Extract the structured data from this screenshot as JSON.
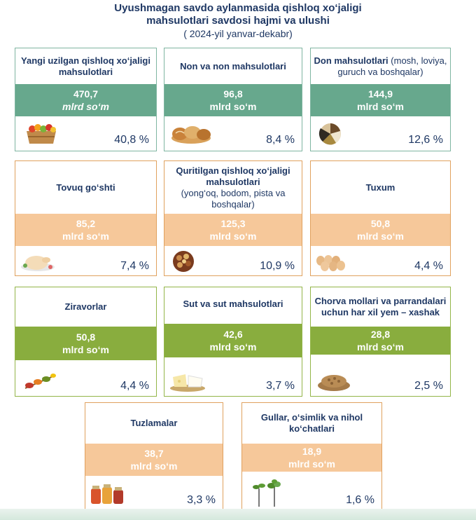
{
  "header": {
    "title_line1": "Uyushmagan savdo aylanmasida  qishloq xo‘jaligi",
    "title_line2": "mahsulotlari savdosi  hajmi va ulushi",
    "subtitle": "( 2024-yil yanvar-dekabr)"
  },
  "cards": [
    {
      "title": "Yangi uzilgan qishloq xo‘jaligi mahsulotlari",
      "title_extra": "",
      "value": "470,7",
      "unit": "mlrd so‘m",
      "percent": "40,8 %",
      "icon": "fruit-crate-icon",
      "color": "#67a88d"
    },
    {
      "title": "Non va non mahsulotlari",
      "title_extra": "",
      "value": "96,8",
      "unit": "mlrd so‘m",
      "percent": "8,4 %",
      "icon": "bread-icon",
      "color": "#67a88d"
    },
    {
      "title": "Don mahsulotlari",
      "title_extra": "(mosh, loviya, guruch va boshqalar)",
      "value": "144,9",
      "unit": "mlrd so‘m",
      "percent": "12,6 %",
      "icon": "grains-icon",
      "color": "#67a88d"
    },
    {
      "title": "Tovuq go‘shti",
      "title_extra": "",
      "value": "85,2",
      "unit": "mlrd so‘m",
      "percent": "7,4 %",
      "icon": "chicken-icon",
      "color": "#f6c89a"
    },
    {
      "title": "Quritilgan qishloq xo‘jaligi mahsulotlari",
      "title_extra": "(yong‘oq, bodom, pista va boshqalar)",
      "value": "125,3",
      "unit": "mlrd so‘m",
      "percent": "10,9 %",
      "icon": "nuts-icon",
      "color": "#f6c89a"
    },
    {
      "title": "Tuxum",
      "title_extra": "",
      "value": "50,8",
      "unit": "mlrd so‘m",
      "percent": "4,4 %",
      "icon": "eggs-icon",
      "color": "#f6c89a"
    },
    {
      "title": "Ziravorlar",
      "title_extra": "",
      "value": "50,8",
      "unit": "mlrd so‘m",
      "percent": "4,4 %",
      "icon": "spices-icon",
      "color": "#89ad3e"
    },
    {
      "title": "Sut va sut mahsulotlari",
      "title_extra": "",
      "value": "42,6",
      "unit": "mlrd so‘m",
      "percent": "3,7 %",
      "icon": "dairy-icon",
      "color": "#89ad3e"
    },
    {
      "title": "Chorva mollari va parrandalari uchun har xil yem – xashak",
      "title_extra": "",
      "value": "28,8",
      "unit": "mlrd so‘m",
      "percent": "2,5 %",
      "icon": "feed-pellets-icon",
      "color": "#89ad3e"
    },
    {
      "title": "Tuzlamalar",
      "title_extra": "",
      "value": "38,7",
      "unit": "mlrd so‘m",
      "percent": "3,3 %",
      "icon": "pickle-jars-icon",
      "color": "#f6c89a"
    },
    {
      "title": "Gullar, o‘simlik va nihol ko‘chatlari",
      "title_extra": "",
      "value": "18,9",
      "unit": "mlrd so‘m",
      "percent": "1,6 %",
      "icon": "seedlings-icon",
      "color": "#f6c89a"
    }
  ]
}
